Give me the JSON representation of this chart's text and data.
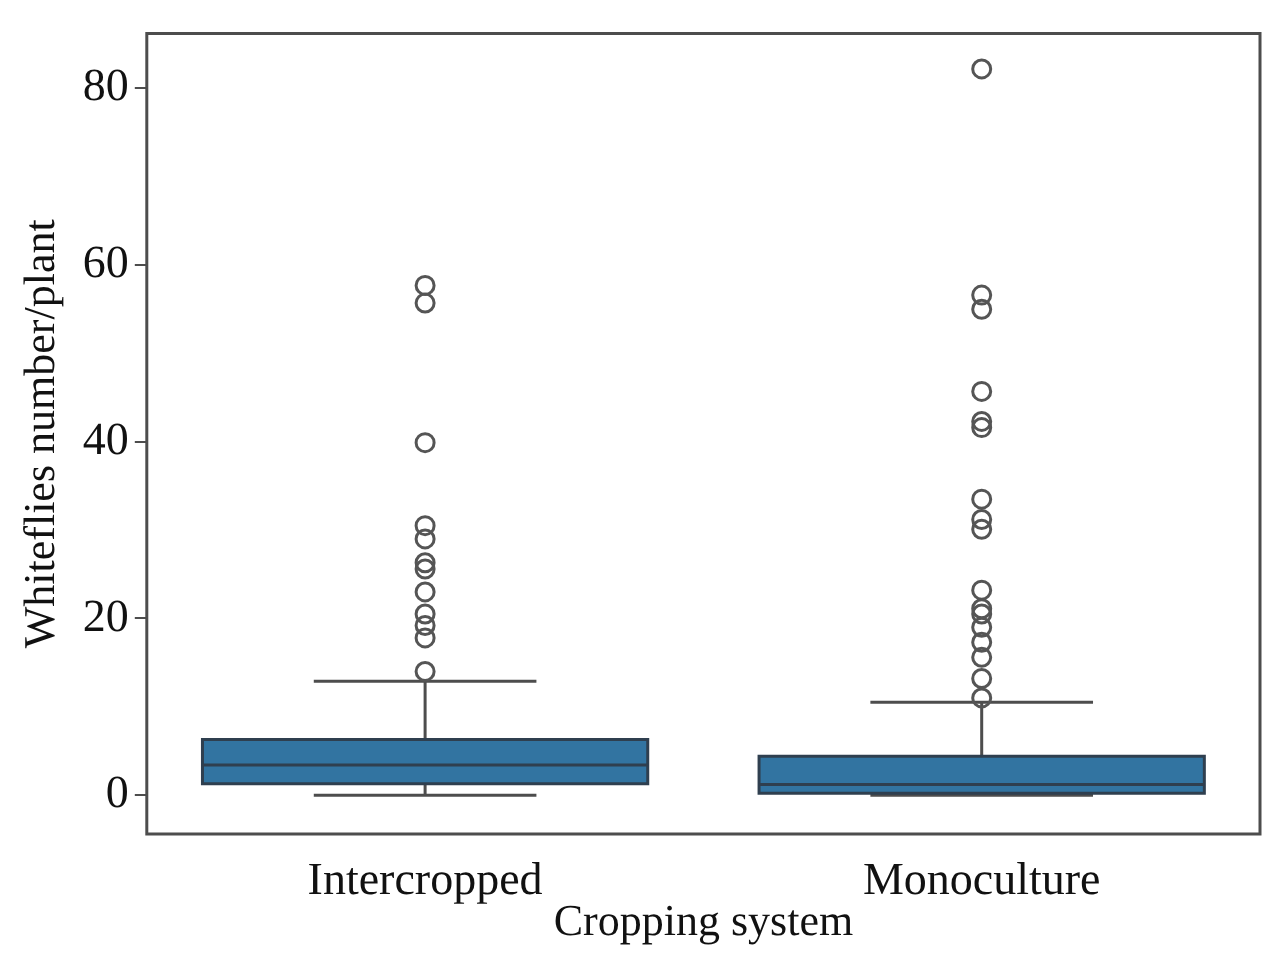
{
  "chart_data": {
    "type": "box",
    "xlabel": "Cropping system",
    "ylabel": "Whiteflies number/plant",
    "categories": [
      "Intercropped",
      "Monoculture"
    ],
    "color": "#3274a1",
    "boxes": [
      {
        "low": 0,
        "q1": 1.3,
        "median": 3.4,
        "q3": 6.3,
        "high": 12.9,
        "outliers": [
          57.7,
          55.7,
          39.9,
          30.5,
          29,
          26.3,
          25.6,
          23,
          20.5,
          19.2,
          17.8,
          14
        ]
      },
      {
        "low": 0,
        "q1": 0.2,
        "median": 1.2,
        "q3": 4.4,
        "high": 10.5,
        "outliers": [
          82.2,
          56.6,
          55,
          45.7,
          42.3,
          41.6,
          33.5,
          31.2,
          30.1,
          23.2,
          21.1,
          20.5,
          19,
          17.3,
          15.6,
          13.2,
          11
        ]
      }
    ],
    "ylim": [
      -4.4,
      86.2
    ],
    "yticks": [
      0,
      20,
      40,
      60,
      80
    ],
    "grid": false
  }
}
